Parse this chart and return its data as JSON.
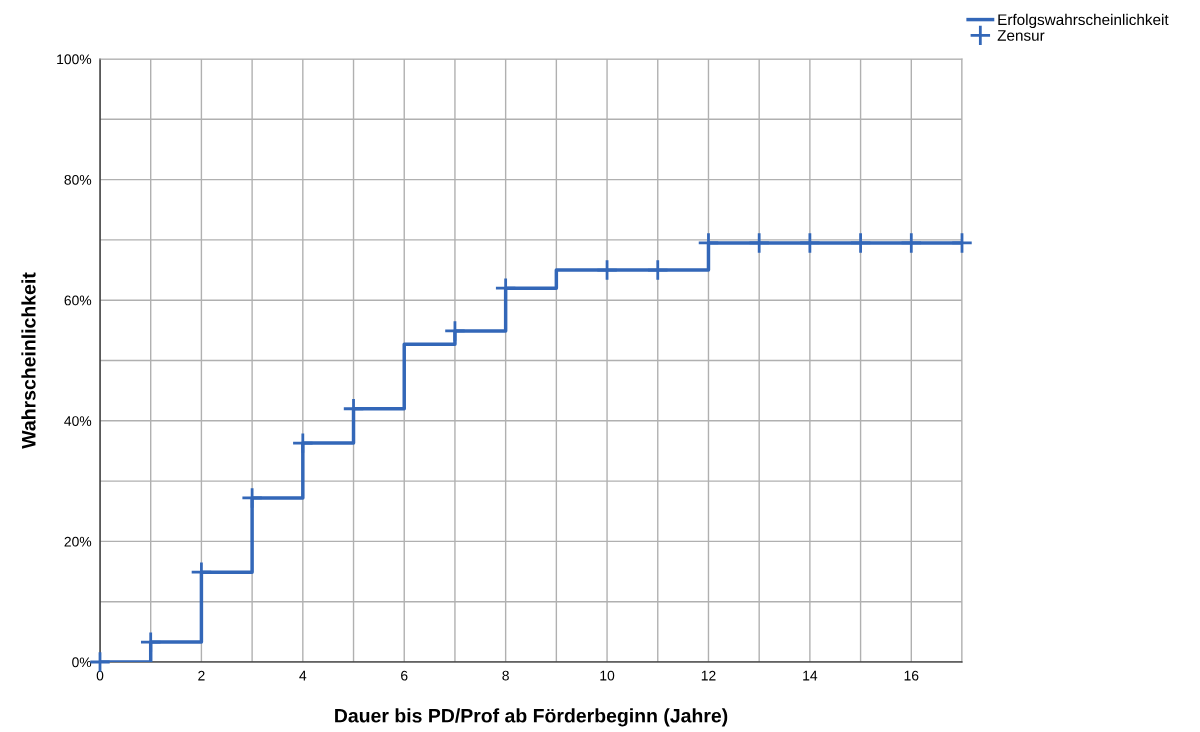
{
  "chart_data": {
    "type": "step",
    "xlabel": "Dauer bis PD/Prof ab Förderbeginn (Jahre)",
    "ylabel": "Wahrscheinlichkeit",
    "series": [
      {
        "name": "Erfolgswahrscheinlichkeit",
        "color": "#3367b8",
        "marker": "none",
        "x": [
          0,
          1,
          2,
          3,
          4,
          5,
          6,
          7,
          8,
          9,
          12,
          17
        ],
        "values": [
          0,
          3.3,
          14.9,
          27.2,
          36.3,
          42.0,
          52.7,
          54.9,
          62.0,
          65.0,
          69.5,
          69.5
        ]
      },
      {
        "name": "Zensur",
        "type": "scatter",
        "color": "#3367b8",
        "marker": "cross",
        "x": [
          0,
          1,
          2,
          3,
          4,
          5,
          7,
          8,
          10,
          11,
          12,
          13,
          14,
          15,
          16,
          17
        ],
        "values": [
          0,
          3.3,
          14.9,
          27.2,
          36.3,
          42.0,
          54.9,
          62.0,
          65.0,
          65.0,
          69.5,
          69.5,
          69.5,
          69.5,
          69.5,
          69.5
        ]
      }
    ],
    "xlim": [
      0,
      17
    ],
    "xticks": [
      0,
      {
        "value": 1,
        "label": null
      },
      2,
      {
        "value": 3,
        "label": null
      },
      4,
      {
        "value": 5,
        "label": null
      },
      6,
      {
        "value": 7,
        "label": null
      },
      8,
      {
        "value": 9,
        "label": null
      },
      10,
      {
        "value": 11,
        "label": null
      },
      12,
      {
        "value": 13,
        "label": null
      },
      14,
      {
        "value": 15,
        "label": null
      },
      16,
      {
        "value": 17,
        "label": null
      }
    ],
    "ylim": [
      0,
      100
    ],
    "yticks": [
      {
        "value": 0,
        "label": "0%"
      },
      {
        "value": 10,
        "label": null
      },
      {
        "value": 20,
        "label": "20%"
      },
      {
        "value": 30,
        "label": null
      },
      {
        "value": 40,
        "label": "40%"
      },
      {
        "value": 50,
        "label": null
      },
      {
        "value": 60,
        "label": "60%"
      },
      {
        "value": 70,
        "label": null
      },
      {
        "value": 80,
        "label": "80%"
      },
      {
        "value": 90,
        "label": null
      },
      {
        "value": 100,
        "label": "100%"
      }
    ],
    "grid": true,
    "legend": "top right"
  }
}
